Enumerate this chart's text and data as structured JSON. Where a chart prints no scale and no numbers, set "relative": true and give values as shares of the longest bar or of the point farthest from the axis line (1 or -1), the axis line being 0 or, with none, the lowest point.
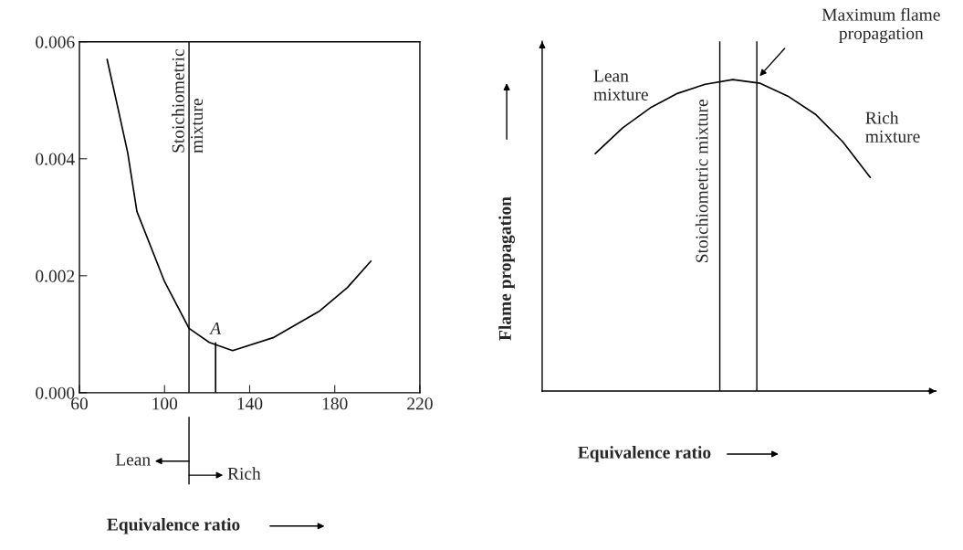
{
  "chart_data": [
    {
      "type": "line",
      "xlabel": "Equivalence ratio",
      "xlim": [
        60,
        220
      ],
      "xticks": [
        60,
        100,
        140,
        180,
        220
      ],
      "ylim": [
        0,
        0.006
      ],
      "yticks": [
        {
          "value": 0,
          "label": "0.000"
        },
        {
          "value": 0.002,
          "label": "0.002"
        },
        {
          "value": 0.004,
          "label": "0.004"
        },
        {
          "value": 0.006,
          "label": "0.006"
        }
      ],
      "grid": false,
      "legend": false,
      "series": [
        {
          "color": "#000000",
          "x": [
            73,
            78.5,
            82.7,
            87,
            100,
            111.5,
            121,
            132,
            151,
            173,
            186,
            197
          ],
          "values": [
            0.0057,
            0.0048,
            0.0041,
            0.0031,
            0.0019,
            0.0011,
            0.00086,
            0.00072,
            0.00094,
            0.0014,
            0.0018,
            0.00225
          ]
        },
        {
          "color": "#000000",
          "x": [
            124,
            124
          ],
          "values": [
            0,
            0.00085
          ]
        }
      ],
      "ref_lines": [
        {
          "axis": "x",
          "value": 111.5,
          "label": "Stoichiometric\nmixture",
          "color": "#000000"
        }
      ],
      "annotations": [
        {
          "text": "A",
          "x": 124,
          "y": 0.00085
        },
        "Lean",
        "Rich"
      ]
    },
    {
      "type": "line",
      "relative": true,
      "xlabel": "Equivalence ratio",
      "ylabel": "Flame propagation",
      "grid": false,
      "legend": false,
      "categories": [
        null,
        null,
        null,
        null,
        null,
        null,
        null,
        null,
        null,
        null,
        null
      ],
      "series": [
        {
          "color": "#000000",
          "values": [
            0.762,
            0.845,
            0.909,
            0.956,
            0.985,
            1,
            0.988,
            0.947,
            0.889,
            0.8,
            0.686
          ]
        }
      ],
      "annotations": [
        "Lean\nmixture",
        "Rich\nmixture",
        "Stoichiometric mixture",
        "Maximum flame\npropagation"
      ]
    }
  ]
}
